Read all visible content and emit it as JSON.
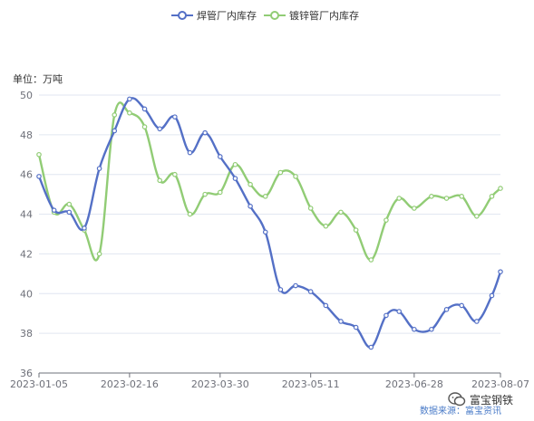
{
  "colors": {
    "welded": "#5470c6",
    "galvanized": "#91cc75",
    "axis_text": "#6e7079",
    "grid": "#e0e6f1",
    "source_text": "#4a7bc8"
  },
  "chart_data": {
    "type": "line",
    "smooth": true,
    "title": "",
    "unit_label": "单位：万吨",
    "legend_position": "top-center",
    "grid": true,
    "ylim": [
      36,
      50
    ],
    "yticks": [
      36,
      38,
      40,
      42,
      44,
      46,
      48,
      50
    ],
    "x_start": "2023-01-05",
    "xlim": [
      "2023-01-05",
      "2023-08-07"
    ],
    "xticks": [
      "2023-01-05",
      "2023-02-16",
      "2023-03-30",
      "2023-05-11",
      "2023-06-28",
      "2023-08-07"
    ],
    "x": [
      "2023-01-05",
      "2023-01-12",
      "2023-01-19",
      "2023-01-26",
      "2023-02-02",
      "2023-02-09",
      "2023-02-16",
      "2023-02-23",
      "2023-03-02",
      "2023-03-09",
      "2023-03-16",
      "2023-03-23",
      "2023-03-30",
      "2023-04-06",
      "2023-04-13",
      "2023-04-20",
      "2023-04-27",
      "2023-05-04",
      "2023-05-11",
      "2023-05-18",
      "2023-05-25",
      "2023-06-01",
      "2023-06-08",
      "2023-06-15",
      "2023-06-21",
      "2023-06-28",
      "2023-07-06",
      "2023-07-13",
      "2023-07-20",
      "2023-07-27",
      "2023-08-03",
      "2023-08-07"
    ],
    "series": [
      {
        "name": "焊管厂内库存",
        "values": [
          45.9,
          44.2,
          44.1,
          43.3,
          46.3,
          48.2,
          49.8,
          49.3,
          48.3,
          48.9,
          47.1,
          48.1,
          46.9,
          45.8,
          44.4,
          43.1,
          40.2,
          40.4,
          40.1,
          39.4,
          38.6,
          38.3,
          37.3,
          38.9,
          39.1,
          38.2,
          38.2,
          39.2,
          39.4,
          38.6,
          39.9,
          41.1
        ]
      },
      {
        "name": "镀锌管厂内库存",
        "values": [
          47.0,
          44.1,
          44.5,
          43.2,
          42.0,
          49.0,
          49.1,
          48.4,
          45.7,
          46.0,
          44.0,
          45.0,
          45.1,
          46.5,
          45.5,
          44.9,
          46.1,
          45.9,
          44.3,
          43.4,
          44.1,
          43.2,
          41.7,
          43.7,
          44.8,
          44.3,
          44.9,
          44.8,
          44.9,
          43.9,
          44.9,
          45.3
        ]
      }
    ]
  },
  "footer": {
    "source": "数据来源：富宝资讯",
    "brand": "富宝钢铁"
  }
}
